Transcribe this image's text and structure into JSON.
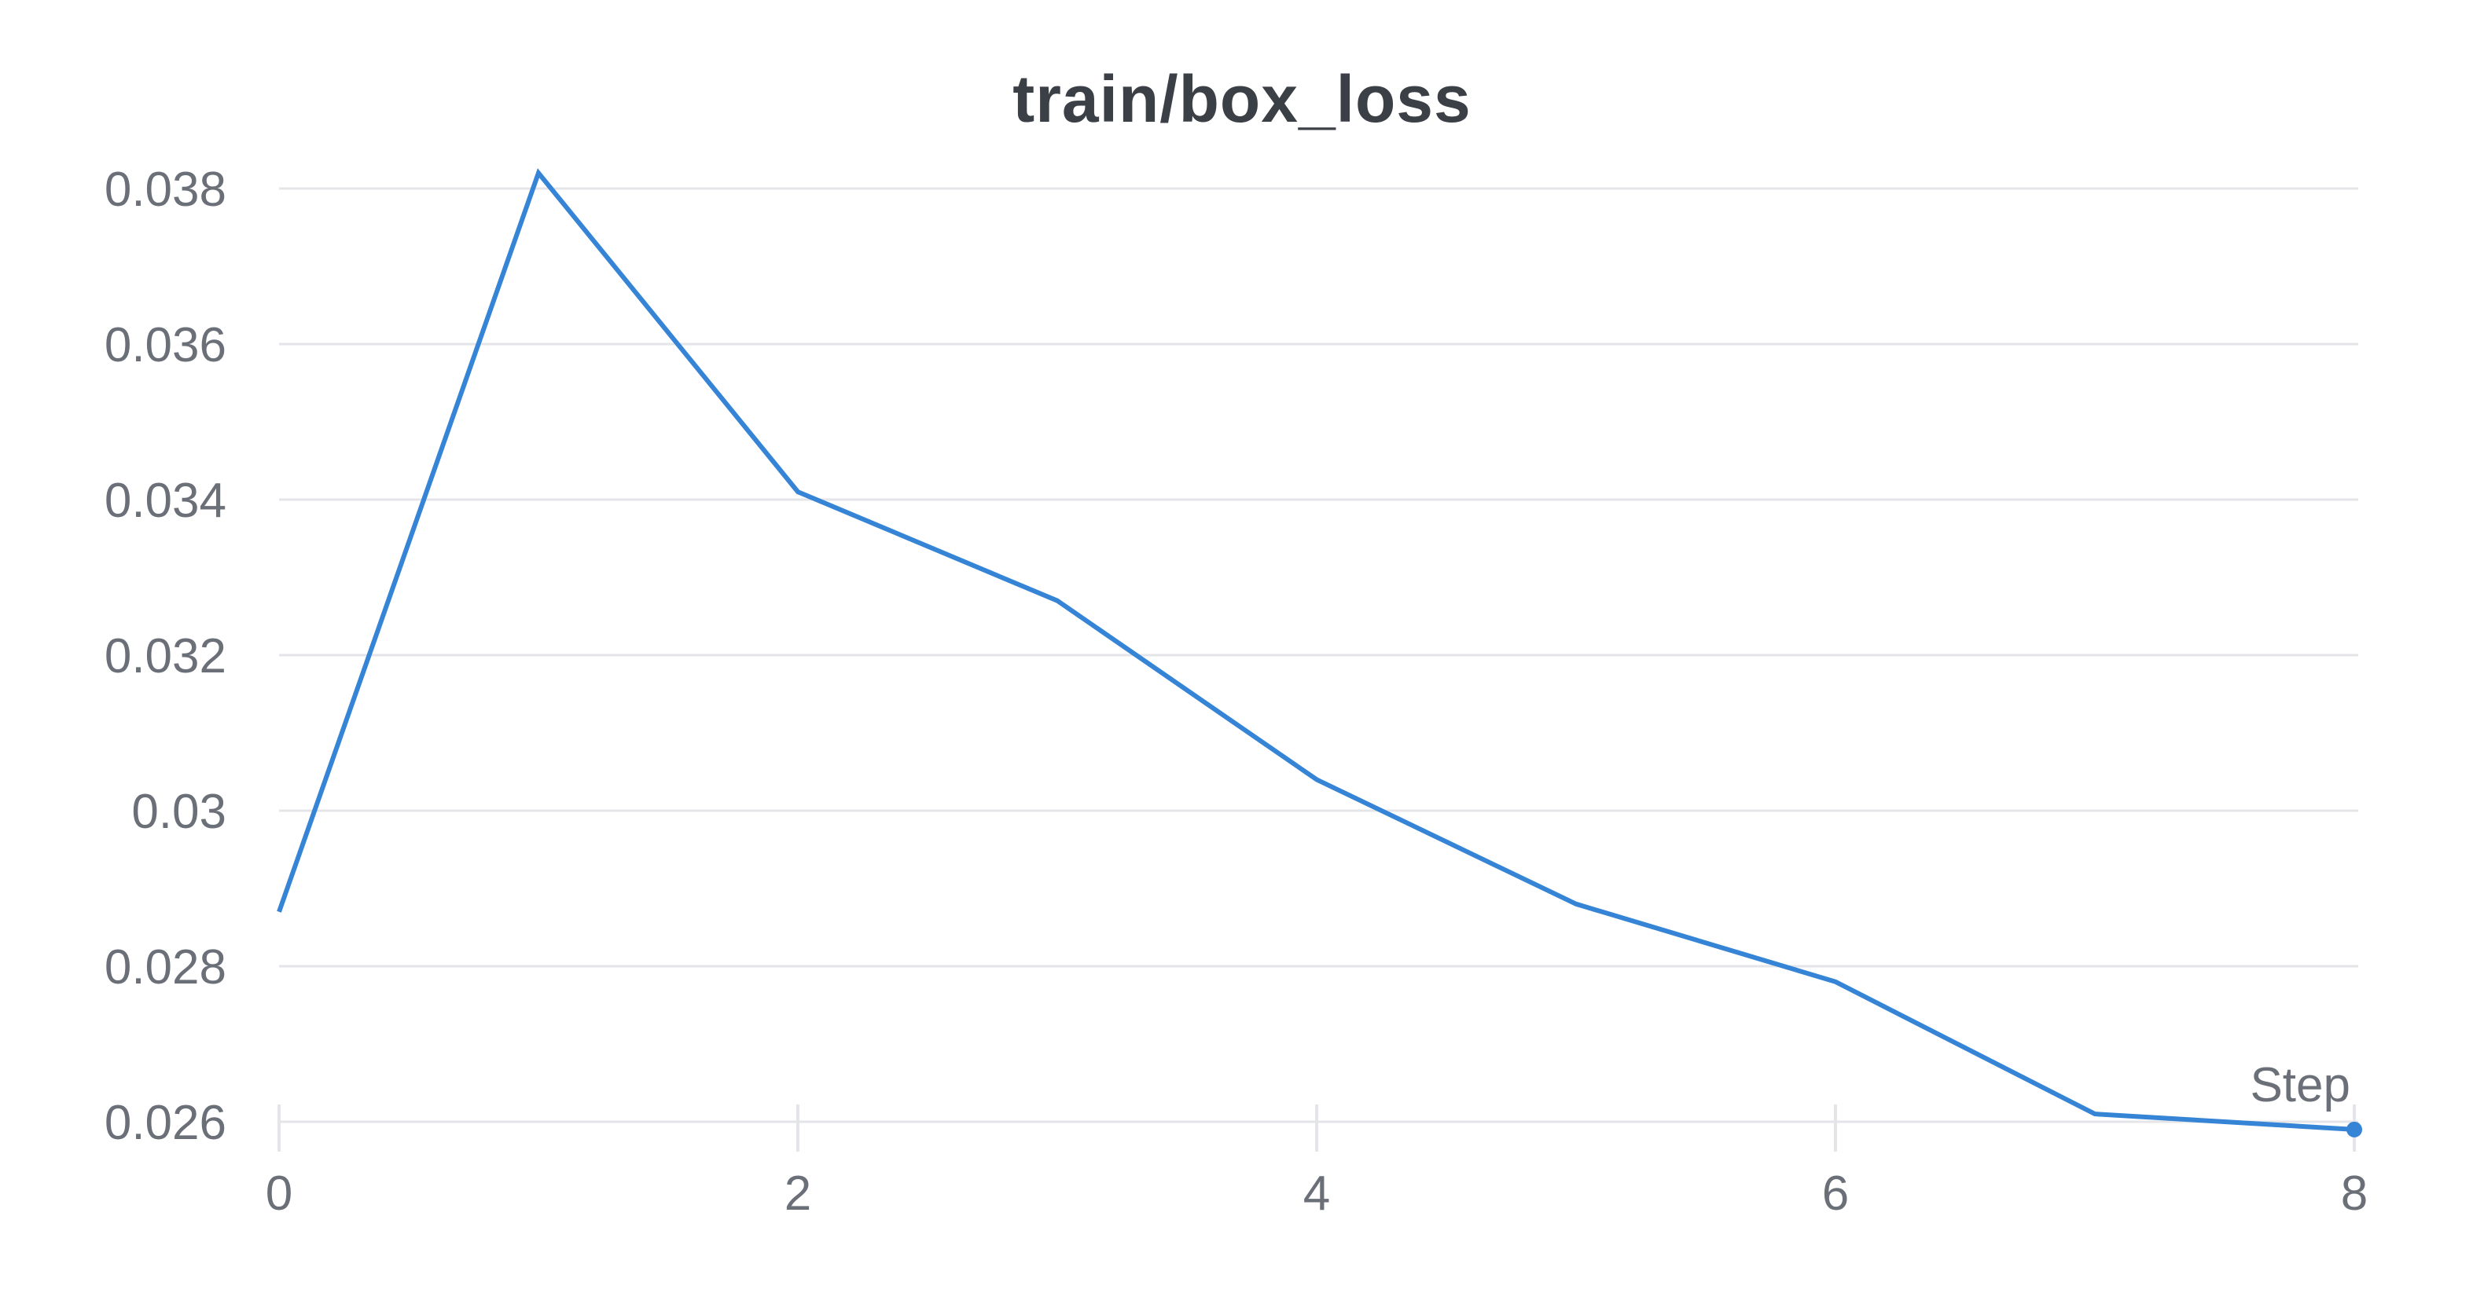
{
  "chart_data": {
    "type": "line",
    "title": "train/box_loss",
    "xlabel": "Step",
    "ylabel": "",
    "x": [
      0,
      1,
      2,
      3,
      4,
      5,
      6,
      7,
      8
    ],
    "series": [
      {
        "values": [
          0.0287,
          0.0382,
          0.0341,
          0.0327,
          0.0304,
          0.0288,
          0.0278,
          0.0261,
          0.0259
        ],
        "color": "#3584d6"
      }
    ],
    "xlim": [
      0,
      8
    ],
    "ylim": [
      0.026,
      0.038
    ],
    "xticks": [
      0,
      2,
      4,
      6,
      8
    ],
    "xtick_labels": [
      "0",
      "2",
      "4",
      "6",
      "8"
    ],
    "yticks": [
      0.026,
      0.028,
      0.03,
      0.032,
      0.034,
      0.036,
      0.038
    ],
    "ytick_labels": [
      "0.026",
      "0.028",
      "0.03",
      "0.032",
      "0.034",
      "0.036",
      "0.038"
    ],
    "grid": true,
    "legend": "none",
    "colors": {
      "line": "#3584d6",
      "grid": "#e4e5e9",
      "tick_text": "#6b6f78",
      "title_text": "#3b3f46"
    }
  }
}
